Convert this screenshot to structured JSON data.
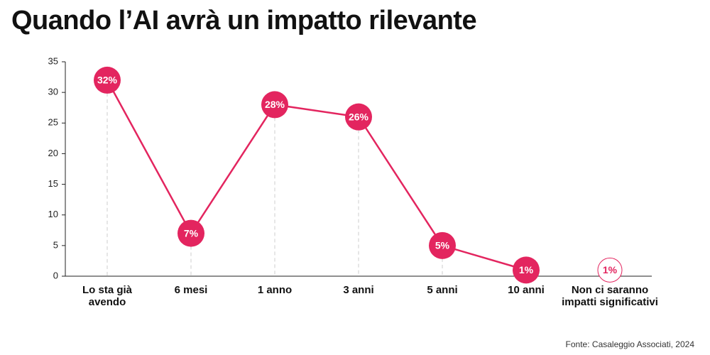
{
  "chart_data": {
    "type": "line",
    "title": "Quando l’AI avrà un impatto rilevante",
    "categories": [
      "Lo sta già\navendo",
      "6 mesi",
      "1 anno",
      "3 anni",
      "5 anni",
      "10 anni",
      "Non ci saranno\nimpatti significativi"
    ],
    "values": [
      32,
      7,
      28,
      26,
      5,
      1,
      1
    ],
    "value_labels": [
      "32%",
      "7%",
      "28%",
      "26%",
      "5%",
      "1%",
      "1%"
    ],
    "hollow_points": [
      6
    ],
    "color": "#e3255f",
    "ylim": [
      0,
      35
    ],
    "yticks": [
      0,
      5,
      10,
      15,
      20,
      25,
      30,
      35
    ],
    "source": "Fonte: Casaleggio Associati, 2024"
  }
}
